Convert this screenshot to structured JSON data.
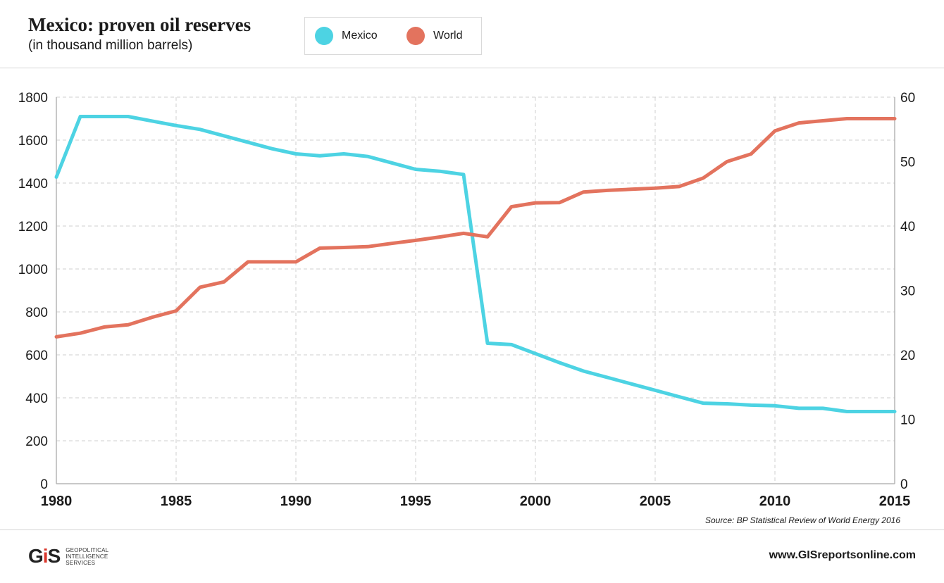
{
  "header": {
    "title": "Mexico: proven oil reserves",
    "subtitle": "(in thousand million barrels)"
  },
  "legend": {
    "items": [
      {
        "label": "Mexico",
        "color": "#4dd3e3"
      },
      {
        "label": "World",
        "color": "#e3735e"
      }
    ]
  },
  "chart_data": {
    "type": "line",
    "title": "Mexico: proven oil reserves",
    "subtitle": "(in thousand million barrels)",
    "x_ticks": [
      1980,
      1985,
      1990,
      1995,
      2000,
      2005,
      2010,
      2015
    ],
    "xlim": [
      1980,
      2015
    ],
    "y_left": {
      "ticks": [
        0,
        200,
        400,
        600,
        800,
        1000,
        1200,
        1400,
        1600,
        1800
      ],
      "ylim": [
        0,
        1800
      ]
    },
    "y_right": {
      "ticks": [
        0,
        10,
        20,
        30,
        40,
        50,
        60
      ],
      "ylim": [
        0,
        60
      ]
    },
    "grid": true,
    "legend_position": "top",
    "series": [
      {
        "name": "Mexico",
        "axis": "right",
        "color": "#4dd3e3",
        "x": [
          1980,
          1981,
          1982,
          1983,
          1984,
          1985,
          1986,
          1987,
          1988,
          1989,
          1990,
          1991,
          1992,
          1993,
          1994,
          1995,
          1996,
          1997,
          1998,
          1999,
          2000,
          2001,
          2002,
          2003,
          2004,
          2005,
          2006,
          2007,
          2008,
          2009,
          2010,
          2011,
          2012,
          2013,
          2014,
          2015
        ],
        "values": [
          47.6,
          57.0,
          57.0,
          57.0,
          56.3,
          55.6,
          55.0,
          54.0,
          53.0,
          52.0,
          51.2,
          50.9,
          51.2,
          50.8,
          49.8,
          48.8,
          48.5,
          48.0,
          21.8,
          21.6,
          20.2,
          18.8,
          17.5,
          16.5,
          15.5,
          14.5,
          13.5,
          12.5,
          12.4,
          12.2,
          12.1,
          11.7,
          11.7,
          11.2,
          11.2,
          11.2
        ]
      },
      {
        "name": "World",
        "axis": "left",
        "color": "#e3735e",
        "x": [
          1980,
          1981,
          1982,
          1983,
          1984,
          1985,
          1986,
          1987,
          1988,
          1989,
          1990,
          1991,
          1992,
          1993,
          1994,
          1995,
          1996,
          1997,
          1998,
          1999,
          2000,
          2001,
          2002,
          2003,
          2004,
          2005,
          2006,
          2007,
          2008,
          2009,
          2010,
          2011,
          2012,
          2013,
          2014,
          2015
        ],
        "values": [
          684,
          701,
          730,
          740,
          775,
          805,
          915,
          940,
          1033,
          1033,
          1033,
          1097,
          1100,
          1104,
          1119,
          1133,
          1149,
          1166,
          1150,
          1290,
          1308,
          1309,
          1358,
          1366,
          1371,
          1376,
          1384,
          1423,
          1500,
          1535,
          1643,
          1680,
          1690,
          1700,
          1700,
          1700
        ]
      }
    ]
  },
  "footer": {
    "source": "Source: BP Statistical Review of World Energy 2016",
    "logo_mark": "GIS",
    "logo_lines": [
      "Geopolitical",
      "Intelligence",
      "Services"
    ],
    "website": "www.GISreportsonline.com"
  }
}
